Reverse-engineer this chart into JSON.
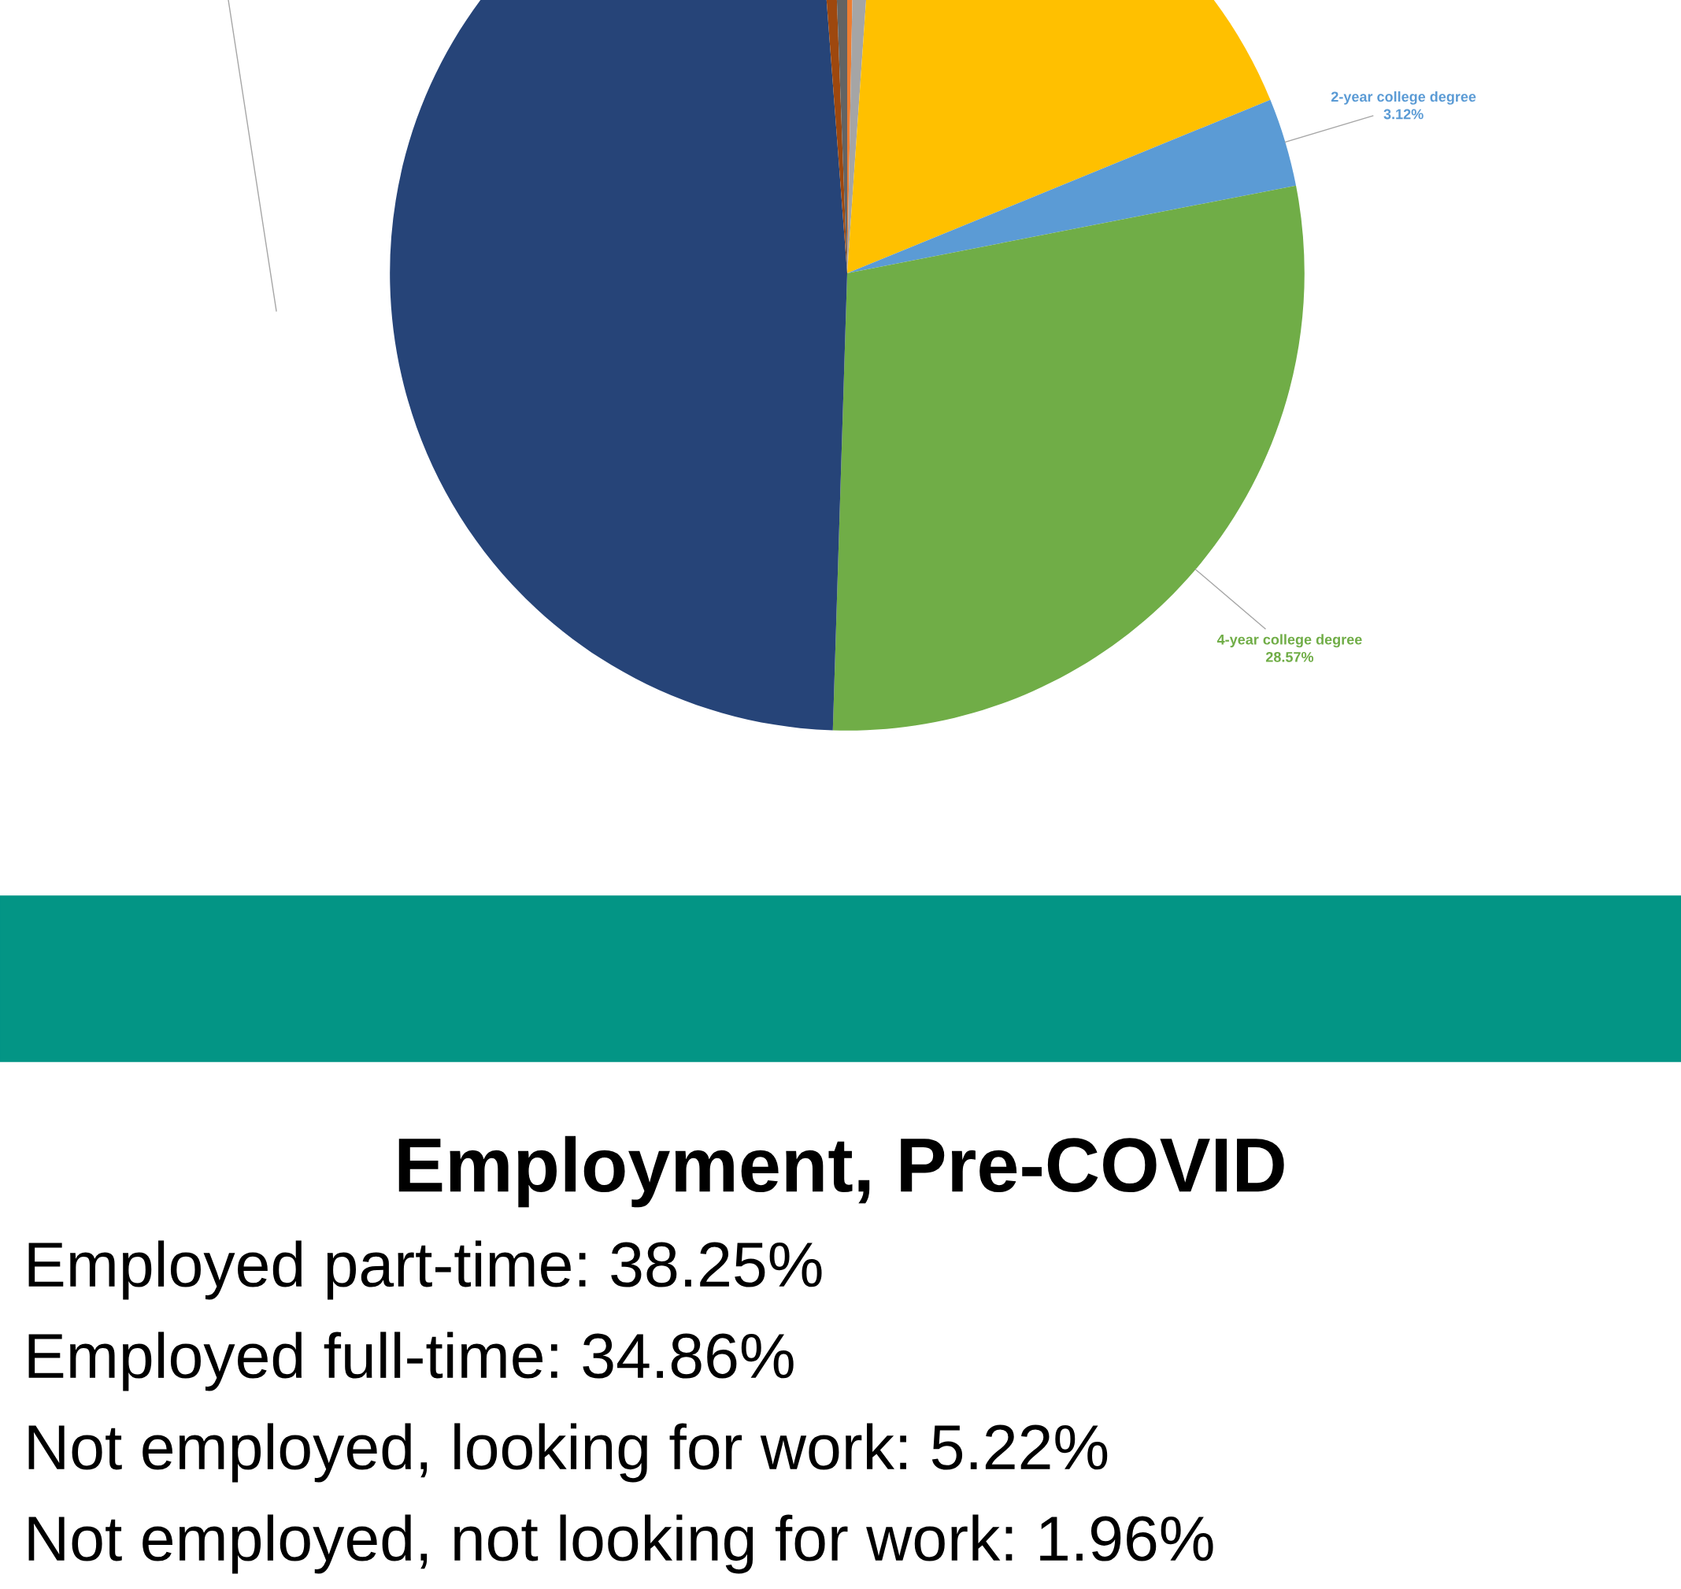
{
  "chart_data": [
    {
      "type": "pie",
      "categories": [
        null,
        null,
        null,
        "2-year college degree",
        "4-year college degree",
        null,
        null,
        null
      ],
      "values": [
        0.3,
        0.8,
        17.71,
        3.12,
        28.57,
        48.3,
        0.6,
        0.6
      ],
      "colors": [
        "#ed7d31",
        "#a5a5a5",
        "#ffc000",
        "#5b9bd5",
        "#70ad47",
        "#264478",
        "#9e480e",
        "#636363"
      ],
      "value_labels": [
        null,
        null,
        null,
        "3.12%",
        "28.57%",
        null,
        null,
        null
      ]
    },
    {
      "type": "other",
      "title": "Employment, Pre-COVID",
      "annotations": [
        "Employed part-time: 38.25%",
        "Employed full-time: 34.86%",
        "Not employed, looking for work: 5.22%",
        "Not employed, not looking for work: 1.96%"
      ]
    }
  ]
}
